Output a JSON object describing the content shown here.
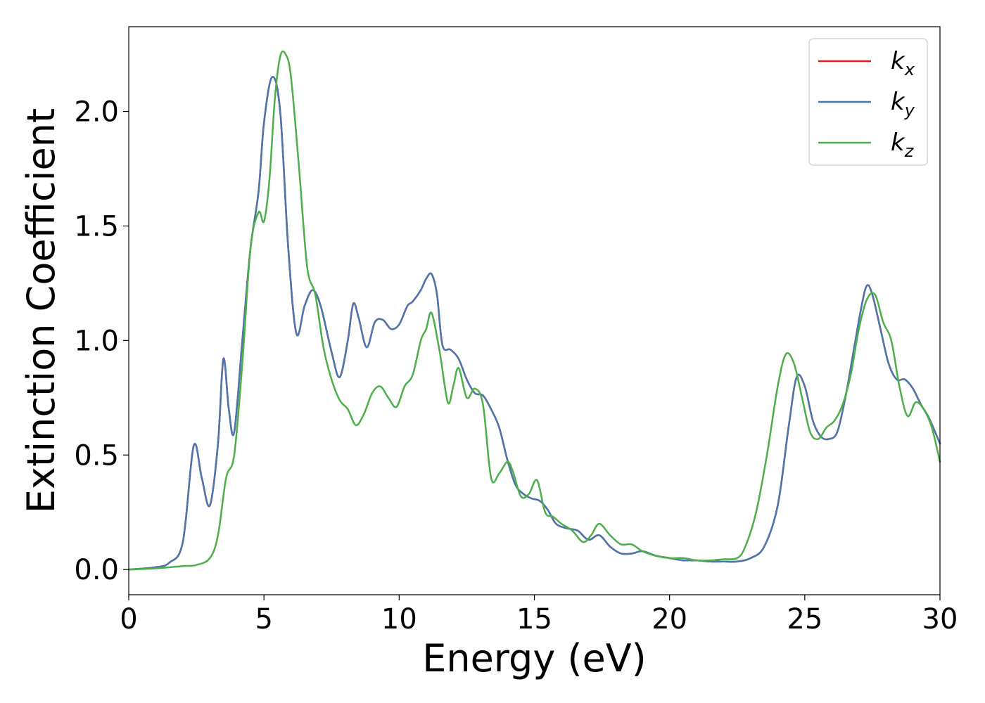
{
  "chart_data": {
    "type": "line",
    "title": "",
    "xlabel": "Energy (eV)",
    "ylabel": "Extinction Coefficient",
    "xlim": [
      0,
      30
    ],
    "ylim": [
      -0.11,
      2.37
    ],
    "xticks": [
      0,
      5,
      10,
      15,
      20,
      25,
      30
    ],
    "xtick_labels": [
      "0",
      "5",
      "10",
      "15",
      "20",
      "25",
      "30"
    ],
    "yticks": [
      0.0,
      0.5,
      1.0,
      1.5,
      2.0
    ],
    "ytick_labels": [
      "0.0",
      "0.5",
      "1.0",
      "1.5",
      "2.0"
    ],
    "grid": false,
    "legend": "top-right",
    "series": [
      {
        "name": "k_x",
        "legend_base": "k",
        "legend_sub": "x",
        "color": "#e41a1c",
        "x": [
          0,
          1,
          1.5,
          2,
          2.4,
          2.7,
          3.0,
          3.3,
          3.5,
          3.7,
          3.9,
          4.2,
          4.5,
          4.8,
          5.0,
          5.3,
          5.6,
          5.9,
          6.2,
          6.5,
          6.8,
          7.1,
          7.5,
          7.8,
          8.1,
          8.3,
          8.5,
          8.8,
          9.1,
          9.4,
          9.7,
          10.0,
          10.3,
          10.5,
          10.8,
          11.0,
          11.2,
          11.4,
          11.6,
          11.9,
          12.2,
          12.5,
          12.8,
          13.1,
          13.4,
          13.7,
          14.0,
          14.3,
          14.6,
          14.9,
          15.2,
          15.5,
          15.8,
          16.2,
          16.6,
          17.0,
          17.4,
          17.8,
          18.2,
          18.6,
          19.0,
          19.5,
          20.0,
          20.5,
          21.0,
          21.5,
          22.0,
          22.5,
          23.0,
          23.5,
          24.0,
          24.4,
          24.7,
          25.0,
          25.3,
          25.6,
          25.9,
          26.2,
          26.5,
          26.8,
          27.1,
          27.3,
          27.5,
          27.8,
          28.1,
          28.4,
          28.7,
          29.0,
          29.3,
          29.6,
          30.0
        ],
        "y": [
          0.0,
          0.01,
          0.03,
          0.12,
          0.54,
          0.4,
          0.28,
          0.55,
          0.92,
          0.7,
          0.6,
          1.0,
          1.4,
          1.65,
          1.95,
          2.15,
          2.0,
          1.4,
          1.03,
          1.15,
          1.22,
          1.15,
          0.95,
          0.84,
          1.0,
          1.16,
          1.1,
          0.97,
          1.08,
          1.09,
          1.05,
          1.07,
          1.15,
          1.17,
          1.22,
          1.27,
          1.29,
          1.2,
          0.98,
          0.96,
          0.92,
          0.83,
          0.77,
          0.76,
          0.7,
          0.62,
          0.48,
          0.37,
          0.33,
          0.31,
          0.3,
          0.26,
          0.2,
          0.18,
          0.17,
          0.13,
          0.15,
          0.1,
          0.07,
          0.07,
          0.08,
          0.06,
          0.05,
          0.04,
          0.04,
          0.035,
          0.035,
          0.035,
          0.05,
          0.1,
          0.28,
          0.62,
          0.84,
          0.8,
          0.65,
          0.58,
          0.57,
          0.6,
          0.75,
          0.95,
          1.15,
          1.24,
          1.2,
          1.05,
          0.9,
          0.83,
          0.83,
          0.79,
          0.72,
          0.66,
          0.55
        ]
      },
      {
        "name": "k_y",
        "legend_base": "k",
        "legend_sub": "y",
        "color": "#4a78ae",
        "x": [
          0,
          1,
          1.5,
          2,
          2.4,
          2.7,
          3.0,
          3.3,
          3.5,
          3.7,
          3.9,
          4.2,
          4.5,
          4.8,
          5.0,
          5.3,
          5.6,
          5.9,
          6.2,
          6.5,
          6.8,
          7.1,
          7.5,
          7.8,
          8.1,
          8.3,
          8.5,
          8.8,
          9.1,
          9.4,
          9.7,
          10.0,
          10.3,
          10.5,
          10.8,
          11.0,
          11.2,
          11.4,
          11.6,
          11.9,
          12.2,
          12.5,
          12.8,
          13.1,
          13.4,
          13.7,
          14.0,
          14.3,
          14.6,
          14.9,
          15.2,
          15.5,
          15.8,
          16.2,
          16.6,
          17.0,
          17.4,
          17.8,
          18.2,
          18.6,
          19.0,
          19.5,
          20.0,
          20.5,
          21.0,
          21.5,
          22.0,
          22.5,
          23.0,
          23.5,
          24.0,
          24.4,
          24.7,
          25.0,
          25.3,
          25.6,
          25.9,
          26.2,
          26.5,
          26.8,
          27.1,
          27.3,
          27.5,
          27.8,
          28.1,
          28.4,
          28.7,
          29.0,
          29.3,
          29.6,
          30.0
        ],
        "y": [
          0.0,
          0.01,
          0.03,
          0.12,
          0.54,
          0.4,
          0.28,
          0.55,
          0.92,
          0.7,
          0.6,
          1.0,
          1.4,
          1.65,
          1.95,
          2.15,
          2.0,
          1.4,
          1.03,
          1.15,
          1.22,
          1.15,
          0.95,
          0.84,
          1.0,
          1.16,
          1.1,
          0.97,
          1.08,
          1.09,
          1.05,
          1.07,
          1.15,
          1.17,
          1.22,
          1.27,
          1.29,
          1.2,
          0.98,
          0.96,
          0.92,
          0.83,
          0.77,
          0.76,
          0.7,
          0.62,
          0.48,
          0.37,
          0.33,
          0.31,
          0.3,
          0.26,
          0.2,
          0.18,
          0.17,
          0.13,
          0.15,
          0.1,
          0.07,
          0.07,
          0.08,
          0.06,
          0.05,
          0.04,
          0.04,
          0.035,
          0.035,
          0.035,
          0.05,
          0.1,
          0.28,
          0.62,
          0.84,
          0.8,
          0.65,
          0.58,
          0.57,
          0.6,
          0.75,
          0.95,
          1.15,
          1.24,
          1.2,
          1.05,
          0.9,
          0.83,
          0.83,
          0.79,
          0.72,
          0.66,
          0.55
        ]
      },
      {
        "name": "k_z",
        "legend_base": "k",
        "legend_sub": "z",
        "color": "#4daf4a",
        "x": [
          0,
          1,
          2,
          2.5,
          3.0,
          3.3,
          3.6,
          3.9,
          4.2,
          4.5,
          4.8,
          5.0,
          5.2,
          5.4,
          5.6,
          5.8,
          6.0,
          6.3,
          6.6,
          6.9,
          7.2,
          7.5,
          7.8,
          8.1,
          8.4,
          8.7,
          9.0,
          9.3,
          9.6,
          9.9,
          10.2,
          10.5,
          10.8,
          11.0,
          11.2,
          11.5,
          11.8,
          12.0,
          12.2,
          12.5,
          12.8,
          13.1,
          13.4,
          13.7,
          14.0,
          14.2,
          14.5,
          14.8,
          15.1,
          15.4,
          15.7,
          16.0,
          16.4,
          16.8,
          17.1,
          17.4,
          17.8,
          18.2,
          18.6,
          19.0,
          19.5,
          20.0,
          20.5,
          21.0,
          21.5,
          22.0,
          22.5,
          22.8,
          23.2,
          23.6,
          24.0,
          24.3,
          24.6,
          24.9,
          25.2,
          25.5,
          25.8,
          26.1,
          26.4,
          26.7,
          27.0,
          27.3,
          27.6,
          27.9,
          28.2,
          28.5,
          28.8,
          29.1,
          29.4,
          29.7,
          30.0
        ],
        "y": [
          0.0,
          0.005,
          0.015,
          0.02,
          0.05,
          0.15,
          0.4,
          0.5,
          0.9,
          1.4,
          1.56,
          1.52,
          1.7,
          2.05,
          2.24,
          2.25,
          2.15,
          1.75,
          1.32,
          1.2,
          0.97,
          0.83,
          0.74,
          0.7,
          0.63,
          0.68,
          0.77,
          0.8,
          0.75,
          0.71,
          0.8,
          0.85,
          1.0,
          1.05,
          1.12,
          0.95,
          0.73,
          0.8,
          0.88,
          0.75,
          0.79,
          0.72,
          0.4,
          0.42,
          0.47,
          0.43,
          0.32,
          0.33,
          0.39,
          0.25,
          0.23,
          0.2,
          0.17,
          0.12,
          0.15,
          0.2,
          0.15,
          0.11,
          0.11,
          0.08,
          0.06,
          0.05,
          0.05,
          0.04,
          0.04,
          0.045,
          0.05,
          0.1,
          0.25,
          0.5,
          0.8,
          0.94,
          0.9,
          0.75,
          0.6,
          0.57,
          0.62,
          0.65,
          0.72,
          0.85,
          1.05,
          1.18,
          1.2,
          1.08,
          1.0,
          0.8,
          0.67,
          0.73,
          0.7,
          0.62,
          0.47
        ]
      }
    ]
  }
}
